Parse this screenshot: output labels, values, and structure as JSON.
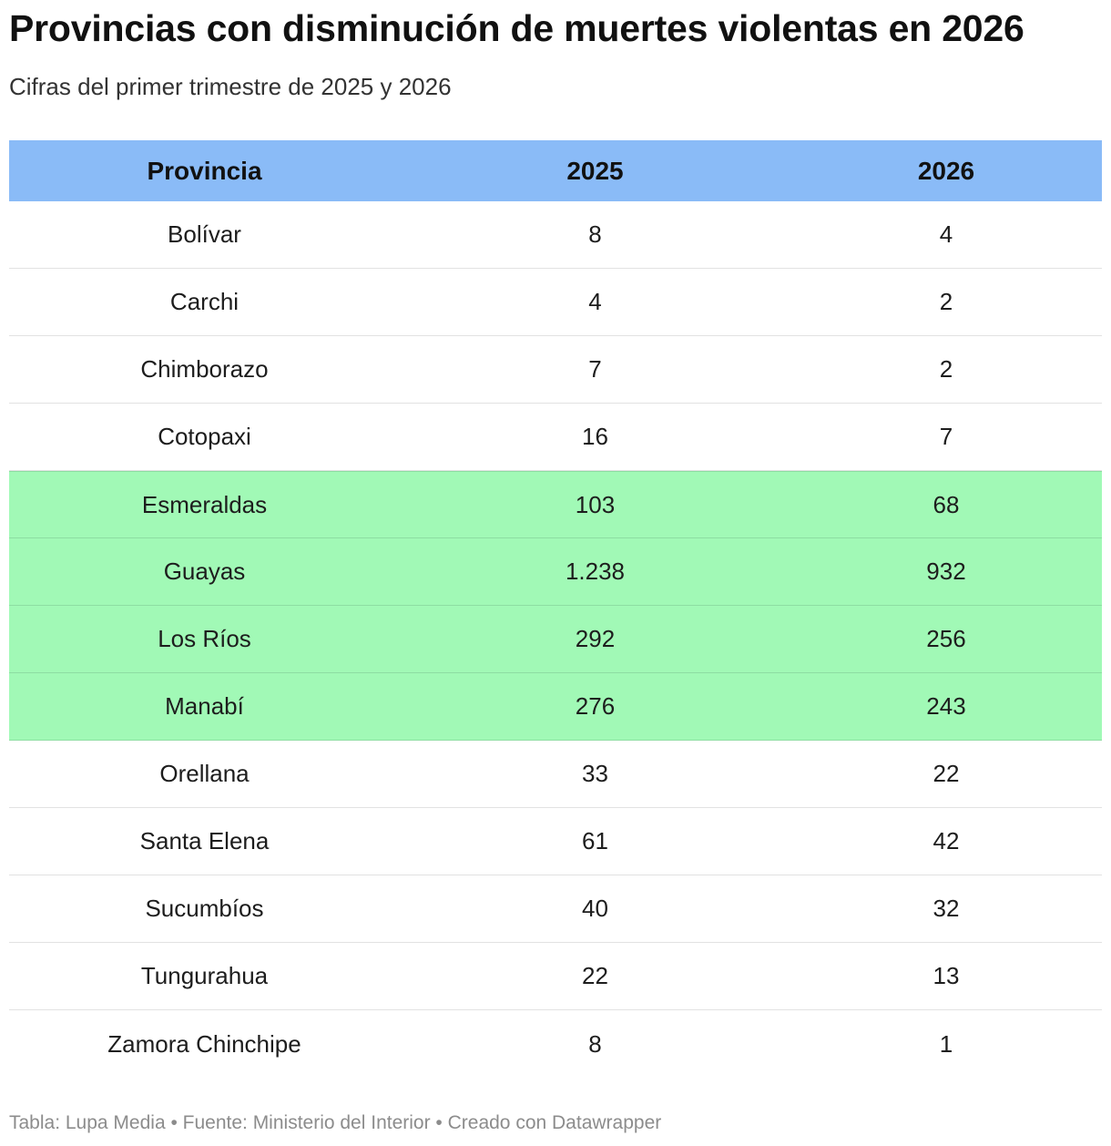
{
  "title": "Provincias con disminución de muertes violentas en 2026",
  "subtitle": "Cifras del primer trimestre de 2025 y 2026",
  "footer": "Tabla: Lupa Media • Fuente: Ministerio del Interior • Creado con Datawrapper",
  "colors": {
    "header_bg": "#8abbf7",
    "highlight_bg": "#a1f9b6"
  },
  "chart_data": {
    "type": "table",
    "columns": [
      "Provincia",
      "2025",
      "2026"
    ],
    "rows": [
      {
        "provincia": "Bolívar",
        "y2025": "8",
        "y2026": "4",
        "highlight": false
      },
      {
        "provincia": "Carchi",
        "y2025": "4",
        "y2026": "2",
        "highlight": false
      },
      {
        "provincia": "Chimborazo",
        "y2025": "7",
        "y2026": "2",
        "highlight": false
      },
      {
        "provincia": "Cotopaxi",
        "y2025": "16",
        "y2026": "7",
        "highlight": false
      },
      {
        "provincia": "Esmeraldas",
        "y2025": "103",
        "y2026": "68",
        "highlight": true
      },
      {
        "provincia": "Guayas",
        "y2025": "1.238",
        "y2026": "932",
        "highlight": true
      },
      {
        "provincia": "Los Ríos",
        "y2025": "292",
        "y2026": "256",
        "highlight": true
      },
      {
        "provincia": "Manabí",
        "y2025": "276",
        "y2026": "243",
        "highlight": true
      },
      {
        "provincia": "Orellana",
        "y2025": "33",
        "y2026": "22",
        "highlight": false
      },
      {
        "provincia": "Santa Elena",
        "y2025": "61",
        "y2026": "42",
        "highlight": false
      },
      {
        "provincia": "Sucumbíos",
        "y2025": "40",
        "y2026": "32",
        "highlight": false
      },
      {
        "provincia": "Tungurahua",
        "y2025": "22",
        "y2026": "13",
        "highlight": false
      },
      {
        "provincia": "Zamora Chinchipe",
        "y2025": "8",
        "y2026": "1",
        "highlight": false
      }
    ]
  }
}
